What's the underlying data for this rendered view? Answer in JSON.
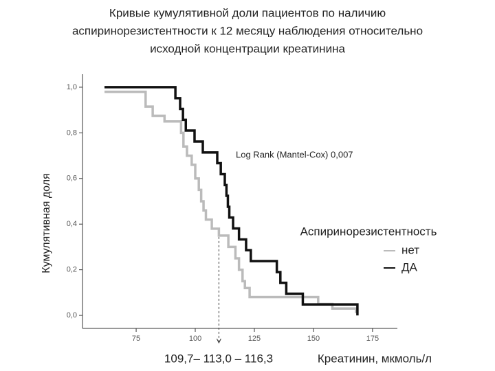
{
  "chart_data": {
    "type": "step",
    "title": [
      "Кривые кумулятивной доли пациентов  по наличию",
      "аспиринорезистентности к  12 месяцу наблюдения относительно",
      "исходной концентрации креатинина"
    ],
    "x_label": "Креатинин, мкмоль/л",
    "y_label": "Кумулятивная доля",
    "annotation": "Log Rank (Mantel-Cox) 0,007",
    "reference_label": "109,7– 113,0 – 116,3",
    "reference_x": 110,
    "legend_title": "Аспиринорезистентность",
    "xlim": [
      52.3,
      185.5
    ],
    "xticks": [
      75,
      100,
      125,
      150,
      175
    ],
    "ylim": [
      -0.057,
      1.057
    ],
    "yticks": [
      {
        "value": 0,
        "label": "0,0"
      },
      {
        "value": 0.2,
        "label": "0,2"
      },
      {
        "value": 0.4,
        "label": "0,4"
      },
      {
        "value": 0.6,
        "label": "0,6"
      },
      {
        "value": 0.8,
        "label": "0,8"
      },
      {
        "value": 1,
        "label": "1,0"
      }
    ],
    "series": [
      {
        "name": "нет",
        "color": "#bbbbbb",
        "x": [
          61.6,
          79,
          82,
          87,
          94,
          95,
          96.5,
          98.5,
          100,
          101.5,
          102.5,
          103.5,
          104.5,
          107,
          110,
          114,
          117,
          118.5,
          120,
          121,
          123,
          152,
          158,
          168
        ],
        "values": [
          0.98,
          0.915,
          0.875,
          0.85,
          0.8,
          0.74,
          0.7,
          0.66,
          0.6,
          0.55,
          0.5,
          0.46,
          0.42,
          0.38,
          0.35,
          0.3,
          0.25,
          0.2,
          0.15,
          0.12,
          0.08,
          0.05,
          0.03,
          0.01
        ]
      },
      {
        "name": "ДА",
        "color": "#111111",
        "x": [
          61.6,
          91.6,
          93.6,
          94.8,
          96,
          99.7,
          103.2,
          109.3,
          110.8,
          112.5,
          113.2,
          113.8,
          114.4,
          116,
          118.5,
          121.5,
          123.5,
          134.5,
          136,
          138.5,
          145.5,
          168.6
        ],
        "values": [
          1.0,
          0.952,
          0.905,
          0.857,
          0.81,
          0.762,
          0.714,
          0.667,
          0.619,
          0.571,
          0.524,
          0.476,
          0.429,
          0.381,
          0.333,
          0.286,
          0.238,
          0.19,
          0.143,
          0.095,
          0.048,
          0.0
        ]
      }
    ]
  }
}
